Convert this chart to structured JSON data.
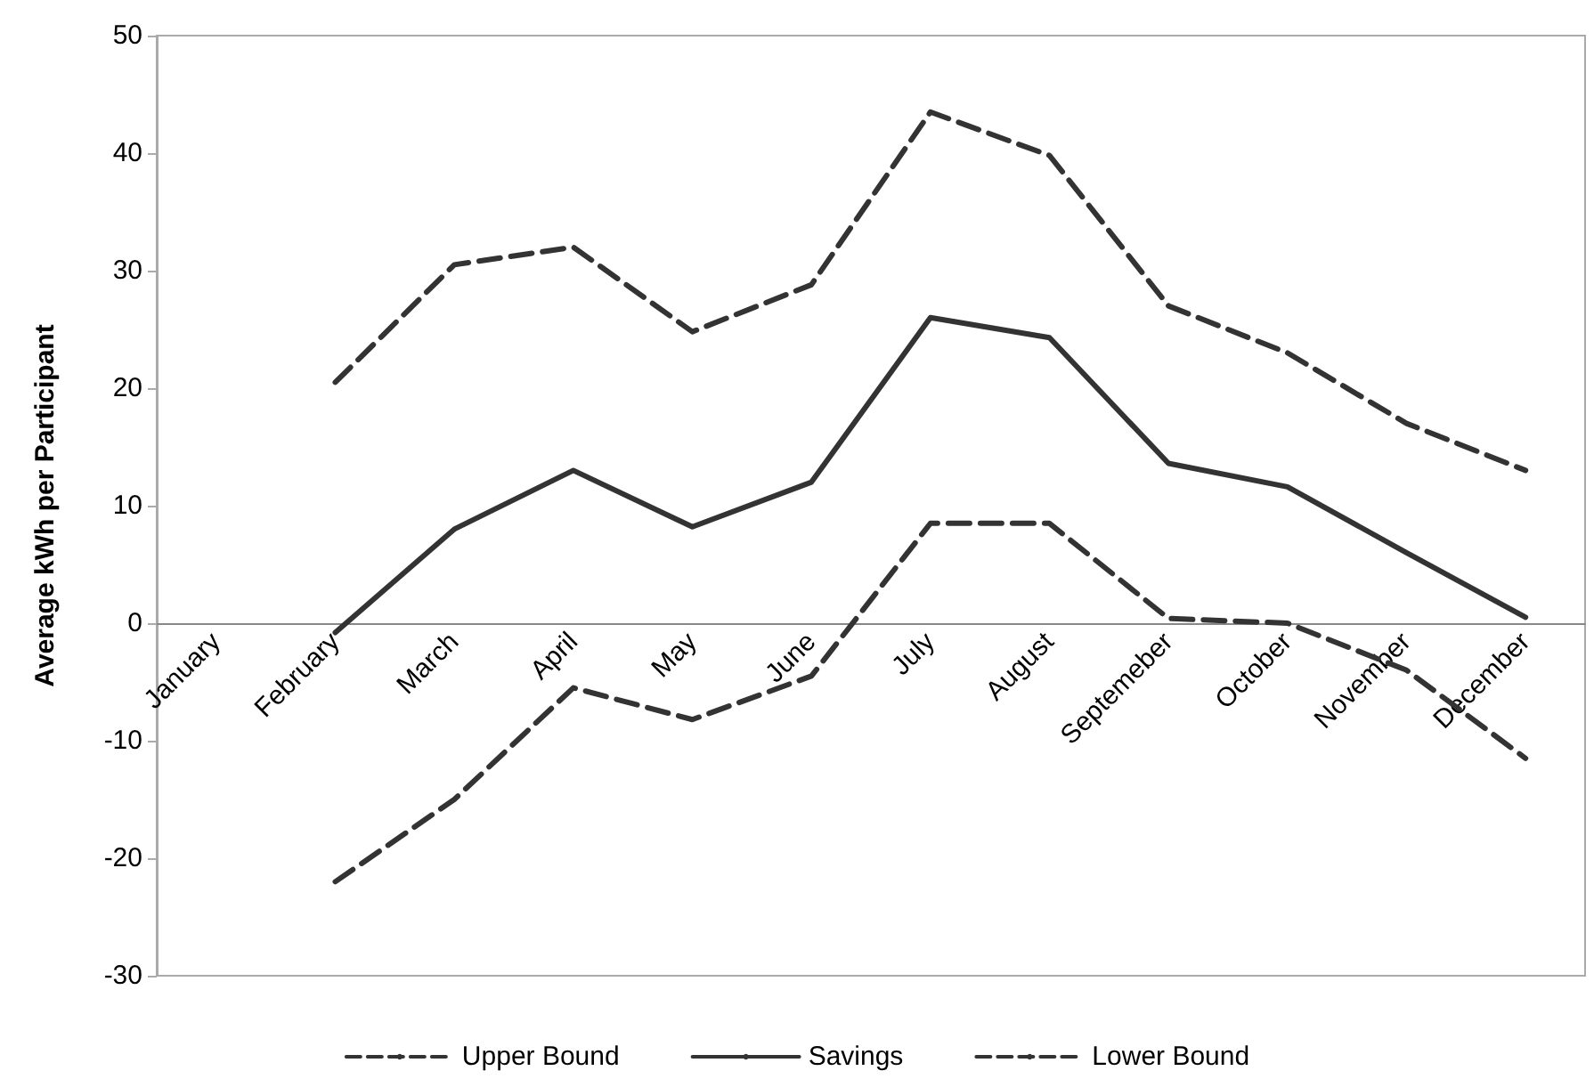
{
  "chart_data": {
    "type": "line",
    "ylabel": "Average kWh per Participant",
    "categories": [
      "January",
      "February",
      "March",
      "April",
      "May",
      "June",
      "July",
      "August",
      "Septemeber",
      "October",
      "November",
      "December"
    ],
    "series": [
      {
        "name": "Upper Bound",
        "color": "#333333",
        "line_style": "dashed",
        "values": [
          null,
          20.5,
          30.5,
          32,
          24.8,
          28.8,
          43.5,
          39.8,
          27,
          23,
          17,
          13
        ]
      },
      {
        "name": "Savings",
        "color": "#333333",
        "line_style": "solid",
        "values": [
          null,
          -0.8,
          8,
          13,
          8.2,
          12,
          26,
          24.3,
          13.6,
          11.6,
          6,
          0.5
        ]
      },
      {
        "name": "Lower Bound",
        "color": "#333333",
        "line_style": "dashed",
        "values": [
          null,
          -22,
          -15,
          -5.5,
          -8.2,
          -4.5,
          8.5,
          8.5,
          0.4,
          0,
          -4,
          -11.5
        ]
      }
    ],
    "ylim": [
      -30,
      50
    ],
    "yticks": [
      -30,
      -20,
      -10,
      0,
      10,
      20,
      30,
      40,
      50
    ],
    "grid": false,
    "legend": "bottom",
    "marker": "none"
  }
}
